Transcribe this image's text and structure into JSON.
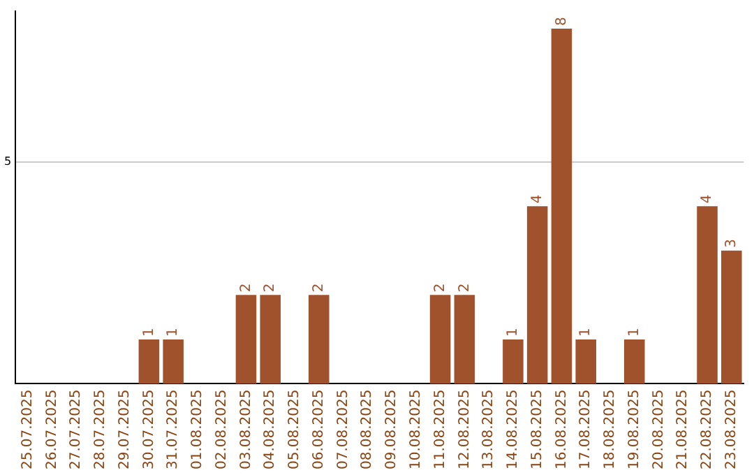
{
  "chart_data": {
    "type": "bar",
    "categories": [
      "25.07.2025",
      "26.07.2025",
      "27.07.2025",
      "28.07.2025",
      "29.07.2025",
      "30.07.2025",
      "31.07.2025",
      "01.08.2025",
      "02.08.2025",
      "03.08.2025",
      "04.08.2025",
      "05.08.2025",
      "06.08.2025",
      "07.08.2025",
      "08.08.2025",
      "09.08.2025",
      "10.08.2025",
      "11.08.2025",
      "12.08.2025",
      "13.08.2025",
      "14.08.2025",
      "15.08.2025",
      "16.08.2025",
      "17.08.2025",
      "18.08.2025",
      "19.08.2025",
      "20.08.2025",
      "21.08.2025",
      "22.08.2025",
      "23.08.2025"
    ],
    "values": [
      0,
      0,
      0,
      0,
      0,
      1,
      1,
      0,
      0,
      2,
      2,
      0,
      2,
      0,
      0,
      0,
      0,
      2,
      2,
      0,
      1,
      4,
      8,
      1,
      0,
      1,
      0,
      0,
      4,
      3
    ],
    "value_labels": [
      null,
      null,
      null,
      null,
      null,
      "1",
      "1",
      null,
      null,
      "2",
      "2",
      null,
      "2",
      null,
      null,
      null,
      null,
      "2",
      "2",
      null,
      "1",
      "4",
      "8",
      "1",
      null,
      "1",
      null,
      null,
      "4",
      "3"
    ],
    "color": "#a0522d",
    "ylim": [
      0,
      8.4
    ],
    "yticks": [
      5
    ],
    "grid": "y",
    "legend": false
  }
}
